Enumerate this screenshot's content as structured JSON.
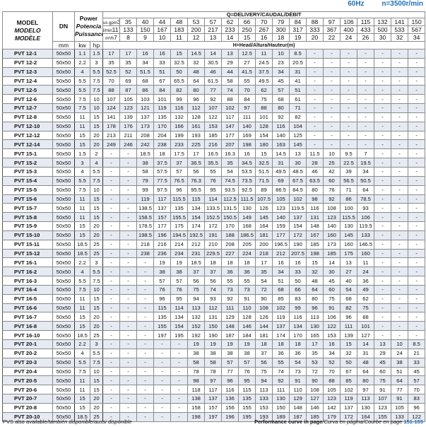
{
  "top": {
    "freq": "60Hz",
    "speed": "n=3500r/min"
  },
  "header": {
    "model": [
      "MODEL",
      "MODELO",
      "MODÈLE"
    ],
    "dn": "DN",
    "dn_unit": "mm",
    "power": [
      "Power",
      "Potencia",
      "Puissance"
    ],
    "kw": "kw",
    "hp": "hp",
    "delivery": "Q=DELIVERY/CAUDAL/DÉBIT",
    "head": "H=Head/Altura/Hauteur(m)",
    "unit_gpm": "us gpm",
    "unit_lmin": "l/min",
    "unit_m3h": "m³/h",
    "gpm": [
      "31",
      "35",
      "40",
      "44",
      "48",
      "53",
      "57",
      "62",
      "66",
      "70",
      "79",
      "84",
      "88",
      "97",
      "106",
      "115",
      "132",
      "141",
      "150"
    ],
    "lmin": [
      "117",
      "133",
      "150",
      "167",
      "183",
      "200",
      "217",
      "233",
      "250",
      "267",
      "300",
      "317",
      "333",
      "367",
      "400",
      "433",
      "500",
      "533",
      "567"
    ],
    "m3h": [
      "7",
      "8",
      "9",
      "10",
      "11",
      "12",
      "13",
      "14",
      "15",
      "16",
      "18",
      "19",
      "20",
      "22",
      "24",
      "26",
      "30",
      "32",
      "34"
    ]
  },
  "rows": [
    {
      "model": "PVT 12-1",
      "dn": "50x50",
      "kw": "1.1",
      "hp": "1.5",
      "h": [
        "17",
        "17",
        "16",
        "16",
        "15",
        "14.5",
        "14",
        "13",
        "12.5",
        "11",
        "10",
        "8.5",
        "-",
        "-",
        "-",
        "-",
        "-",
        "-",
        "-"
      ]
    },
    {
      "model": "PVT 12-2",
      "dn": "50x50",
      "kw": "2.2",
      "hp": "3",
      "h": [
        "35",
        "35",
        "34",
        "33",
        "32.5",
        "32",
        "30.5",
        "29",
        "27",
        "24.5",
        "23",
        "20.5",
        "-",
        "-",
        "-",
        "-",
        "-",
        "-",
        "-"
      ]
    },
    {
      "model": "PVT 12-3",
      "dn": "50x50",
      "kw": "4",
      "hp": "5.5",
      "h": [
        "52.5",
        "52",
        "51.5",
        "51",
        "50",
        "48",
        "46",
        "44",
        "41.5",
        "37.5",
        "34",
        "31",
        "-",
        "-",
        "-",
        "-",
        "-",
        "-",
        "-"
      ]
    },
    {
      "model": "PVT 12-4",
      "dn": "50x50",
      "kw": "5.5",
      "hp": "7.5",
      "h": [
        "70",
        "69",
        "68",
        "67",
        "65.5",
        "64",
        "61.5",
        "58",
        "55",
        "49.5",
        "45",
        "41",
        "-",
        "-",
        "-",
        "-",
        "-",
        "-",
        "-"
      ]
    },
    {
      "model": "PVT 12-5",
      "dn": "50x50",
      "kw": "5.5",
      "hp": "7.5",
      "h": [
        "88",
        "87",
        "86",
        "84",
        "82",
        "80",
        "77",
        "74",
        "70",
        "62",
        "57",
        "51",
        "-",
        "-",
        "-",
        "-",
        "-",
        "-",
        "-"
      ]
    },
    {
      "model": "PVT 12-6",
      "dn": "50x50",
      "kw": "7.5",
      "hp": "10",
      "h": [
        "107",
        "105",
        "103",
        "101",
        "99",
        "96",
        "92",
        "88",
        "84",
        "75",
        "68",
        "61",
        "-",
        "-",
        "-",
        "-",
        "-",
        "-",
        "-"
      ]
    },
    {
      "model": "PVT 12-7",
      "dn": "50x50",
      "kw": "7.5",
      "hp": "10",
      "h": [
        "124",
        "123",
        "121",
        "119",
        "116",
        "112",
        "107",
        "102",
        "97",
        "88",
        "80",
        "71",
        "-",
        "-",
        "-",
        "-",
        "-",
        "-",
        "-"
      ]
    },
    {
      "model": "PVT 12-8",
      "dn": "50x50",
      "kw": "11",
      "hp": "15",
      "h": [
        "141",
        "139",
        "137",
        "135",
        "132",
        "128",
        "122",
        "117",
        "111",
        "101",
        "92",
        "82",
        "-",
        "-",
        "-",
        "-",
        "-",
        "-",
        "-"
      ]
    },
    {
      "model": "PVT 12-10",
      "dn": "50x50",
      "kw": "11",
      "hp": "15",
      "h": [
        "178",
        "176",
        "173",
        "170",
        "166",
        "161",
        "153",
        "147",
        "140",
        "128",
        "116",
        "104",
        "-",
        "-",
        "-",
        "-",
        "-",
        "-",
        "-"
      ]
    },
    {
      "model": "PVT 12-12",
      "dn": "50x50",
      "kw": "15",
      "hp": "20",
      "h": [
        "213",
        "211",
        "208",
        "204",
        "199",
        "193",
        "185",
        "177",
        "169",
        "154",
        "140",
        "125",
        "-",
        "-",
        "-",
        "-",
        "-",
        "-",
        "-"
      ]
    },
    {
      "model": "PVT 12-14",
      "dn": "50x50",
      "kw": "15",
      "hp": "20",
      "h": [
        "249",
        "246",
        "242",
        "238",
        "233",
        "225",
        "216",
        "207",
        "198",
        "180",
        "163",
        "145",
        "-",
        "-",
        "-",
        "-",
        "-",
        "-",
        "-"
      ]
    },
    {
      "model": "PVT 15-1",
      "dn": "50x50",
      "kw": "1.5",
      "hp": "2",
      "h": [
        "-",
        "-",
        "18.5",
        "18",
        "17.5",
        "17",
        "16.5",
        "16.3",
        "16",
        "15",
        "14.5",
        "13",
        "11.5",
        "10",
        "9.5",
        "7",
        "-",
        "-",
        "-"
      ]
    },
    {
      "model": "PVT 15-2",
      "dn": "50x50",
      "kw": "3",
      "hp": "4",
      "h": [
        "-",
        "-",
        "38",
        "37.5",
        "37",
        "36.5",
        "35.5",
        "35",
        "34.5",
        "32.5",
        "31",
        "30",
        "28",
        "25",
        "22.5",
        "19.5",
        "-",
        "-",
        "-"
      ]
    },
    {
      "model": "PVT 15-3",
      "dn": "50x50",
      "kw": "4",
      "hp": "5.5",
      "h": [
        "-",
        "-",
        "58",
        "57.5",
        "57",
        "56",
        "55",
        "54",
        "53.5",
        "51.5",
        "49.5",
        "48.5",
        "46",
        "42",
        "39",
        "34",
        "-",
        "-",
        "-"
      ]
    },
    {
      "model": "PVT 15-4",
      "dn": "50x50",
      "kw": "5.5",
      "hp": "7.5",
      "h": [
        "-",
        "-",
        "79",
        "77.5",
        "76.5",
        "76.3",
        "76",
        "74.5",
        "73.5",
        "71.5",
        "69",
        "67.5",
        "63.5",
        "60",
        "56.5",
        "50.5",
        "-",
        "-",
        "-"
      ]
    },
    {
      "model": "PVT 15-5",
      "dn": "50x50",
      "kw": "7.5",
      "hp": "10",
      "h": [
        "-",
        "-",
        "99",
        "97.5",
        "96",
        "95.5",
        "95",
        "93.5",
        "92.5",
        "89",
        "86.5",
        "84.5",
        "80",
        "76",
        "71",
        "64",
        "-",
        "-",
        "-"
      ]
    },
    {
      "model": "PVT 15-6",
      "dn": "50x50",
      "kw": "11",
      "hp": "15",
      "h": [
        "-",
        "-",
        "119",
        "117",
        "115.5",
        "115",
        "114",
        "112.5",
        "111.5",
        "107.5",
        "105",
        "102",
        "98",
        "92",
        "86",
        "78.5",
        "-",
        "-",
        "-"
      ]
    },
    {
      "model": "PVT 15-7",
      "dn": "50x50",
      "kw": "11",
      "hp": "15",
      "h": [
        "-",
        "-",
        "138.5",
        "137",
        "135",
        "134",
        "133.5",
        "131.5",
        "130",
        "126",
        "123",
        "119.5",
        "116",
        "108",
        "100",
        "93",
        "-",
        "-",
        "-"
      ]
    },
    {
      "model": "PVT 15-8",
      "dn": "50x50",
      "kw": "11",
      "hp": "15",
      "h": [
        "-",
        "-",
        "158.5",
        "157",
        "155.5",
        "154",
        "152.5",
        "150.5",
        "149",
        "145",
        "140",
        "137",
        "131",
        "123",
        "115.5",
        "106",
        "-",
        "-",
        "-"
      ]
    },
    {
      "model": "PVT 15-9",
      "dn": "50x50",
      "kw": "15",
      "hp": "20",
      "h": [
        "-",
        "-",
        "178.5",
        "177",
        "175",
        "174",
        "172",
        "170",
        "168",
        "164",
        "159",
        "154",
        "148",
        "140",
        "130",
        "119.5",
        "-",
        "-",
        "-"
      ]
    },
    {
      "model": "PVT 15-10",
      "dn": "50x50",
      "kw": "15",
      "hp": "20",
      "h": [
        "-",
        "-",
        "198.5",
        "196",
        "194.5",
        "192.5",
        "191",
        "188",
        "186.5",
        "181",
        "177",
        "172",
        "167",
        "160",
        "145",
        "133",
        "-",
        "-",
        "-"
      ]
    },
    {
      "model": "PVT 15-11",
      "dn": "50x50",
      "kw": "18.5",
      "hp": "25",
      "h": [
        "-",
        "-",
        "218",
        "216",
        "214",
        "212",
        "210",
        "208",
        "205",
        "200",
        "196.5",
        "190",
        "185",
        "173",
        "160",
        "146.5",
        "-",
        "-",
        "-"
      ]
    },
    {
      "model": "PVT 15-12",
      "dn": "50x50",
      "kw": "18.5",
      "hp": "25",
      "h": [
        "-",
        "-",
        "238",
        "236",
        "234",
        "231",
        "229.5",
        "227",
        "224",
        "218",
        "212",
        "207.5",
        "198",
        "185",
        "175",
        "160",
        "-",
        "-",
        "-"
      ]
    },
    {
      "model": "PVT 16-1",
      "dn": "50x50",
      "kw": "2.2",
      "hp": "3",
      "h": [
        "-",
        "-",
        "-",
        "19",
        "19",
        "18.5",
        "18",
        "18",
        "18",
        "17",
        "16",
        "16",
        "15",
        "14",
        "13",
        "11",
        "-",
        "-",
        "-"
      ]
    },
    {
      "model": "PVT 16-2",
      "dn": "50x50",
      "kw": "4",
      "hp": "5.5",
      "h": [
        "-",
        "-",
        "-",
        "38",
        "38",
        "37",
        "37",
        "36",
        "36",
        "35",
        "34",
        "33",
        "32",
        "30",
        "27",
        "24",
        "-",
        "-",
        "-"
      ]
    },
    {
      "model": "PVT 16-3",
      "dn": "50x50",
      "kw": "5.5",
      "hp": "7.5",
      "h": [
        "-",
        "-",
        "-",
        "57",
        "57",
        "56",
        "56",
        "55",
        "55",
        "54",
        "51",
        "50",
        "48",
        "45",
        "40",
        "36",
        "-",
        "-",
        "-"
      ]
    },
    {
      "model": "PVT 16-4",
      "dn": "50x50",
      "kw": "7.5",
      "hp": "10",
      "h": [
        "-",
        "-",
        "-",
        "76",
        "76",
        "75",
        "74",
        "73",
        "73",
        "72",
        "68",
        "66",
        "64",
        "60",
        "54",
        "49",
        "-",
        "-",
        "-"
      ]
    },
    {
      "model": "PVT 16-5",
      "dn": "50x50",
      "kw": "11",
      "hp": "15",
      "h": [
        "-",
        "-",
        "-",
        "96",
        "95",
        "94",
        "93",
        "92",
        "91",
        "90",
        "85",
        "83",
        "80",
        "75",
        "68",
        "62",
        "-",
        "-",
        "-"
      ]
    },
    {
      "model": "PVT 16-6",
      "dn": "50x50",
      "kw": "11",
      "hp": "15",
      "h": [
        "-",
        "-",
        "-",
        "115",
        "114",
        "113",
        "112",
        "111",
        "110",
        "108",
        "102",
        "99",
        "96",
        "91",
        "82",
        "75",
        "-",
        "-",
        "-"
      ]
    },
    {
      "model": "PVT 16-7",
      "dn": "50x50",
      "kw": "15",
      "hp": "20",
      "h": [
        "-",
        "-",
        "-",
        "135",
        "134",
        "132",
        "131",
        "129",
        "128",
        "126",
        "119",
        "116",
        "113",
        "106",
        "96",
        "88",
        "-",
        "-",
        "-"
      ]
    },
    {
      "model": "PVT 16-8",
      "dn": "50x50",
      "kw": "15",
      "hp": "20",
      "h": [
        "-",
        "-",
        "-",
        "155",
        "154",
        "152",
        "150",
        "148",
        "146",
        "144",
        "137",
        "134",
        "130",
        "122",
        "111",
        "101",
        "-",
        "-",
        "-"
      ]
    },
    {
      "model": "PVT 16-10",
      "dn": "50x50",
      "kw": "18.5",
      "hp": "25",
      "h": [
        "-",
        "-",
        "-",
        "197",
        "195",
        "192",
        "190",
        "187",
        "184",
        "181",
        "174",
        "170",
        "165",
        "153",
        "139",
        "127",
        "-",
        "-",
        "-"
      ]
    },
    {
      "model": "PVT 20-1",
      "dn": "50x50",
      "kw": "2.2",
      "hp": "3",
      "h": [
        "-",
        "-",
        "-",
        "-",
        "-",
        "19",
        "19",
        "19",
        "19",
        "18",
        "18",
        "18",
        "17",
        "16",
        "15",
        "14",
        "13",
        "10",
        "8.5"
      ]
    },
    {
      "model": "PVT 20-2",
      "dn": "50x50",
      "kw": "4",
      "hp": "5.5",
      "h": [
        "-",
        "-",
        "-",
        "-",
        "-",
        "38",
        "38",
        "38",
        "38",
        "37",
        "36",
        "36",
        "35",
        "34",
        "32",
        "31",
        "29",
        "24",
        "21"
      ]
    },
    {
      "model": "PVT 20-3",
      "dn": "50x50",
      "kw": "5.5",
      "hp": "7.5",
      "h": [
        "-",
        "-",
        "-",
        "-",
        "-",
        "58",
        "58",
        "57",
        "57",
        "56",
        "55",
        "54",
        "53",
        "52",
        "50",
        "48",
        "45",
        "38",
        "33"
      ]
    },
    {
      "model": "PVT 20-4",
      "dn": "50x50",
      "kw": "7.5",
      "hp": "10",
      "h": [
        "-",
        "-",
        "-",
        "-",
        "-",
        "78",
        "78",
        "77",
        "76",
        "75",
        "74",
        "73",
        "72",
        "70",
        "67",
        "64",
        "60",
        "51",
        "45"
      ]
    },
    {
      "model": "PVT 20-5",
      "dn": "50x50",
      "kw": "11",
      "hp": "15",
      "h": [
        "-",
        "-",
        "-",
        "-",
        "-",
        "98",
        "97",
        "96",
        "95",
        "94",
        "92",
        "91",
        "90",
        "88",
        "85",
        "80",
        "75",
        "64",
        "57"
      ]
    },
    {
      "model": "PVT 20-6",
      "dn": "50x50",
      "kw": "11",
      "hp": "15",
      "h": [
        "-",
        "-",
        "-",
        "-",
        "-",
        "118",
        "117",
        "116",
        "115",
        "113",
        "111",
        "110",
        "108",
        "105",
        "102",
        "97",
        "91",
        "77",
        "70"
      ]
    },
    {
      "model": "PVT 20-7",
      "dn": "50x50",
      "kw": "15",
      "hp": "20",
      "h": [
        "-",
        "-",
        "-",
        "-",
        "-",
        "138",
        "137",
        "136",
        "135",
        "133",
        "130",
        "129",
        "127",
        "123",
        "119",
        "113",
        "107",
        "91",
        "83"
      ]
    },
    {
      "model": "PVT 20-8",
      "dn": "50x50",
      "kw": "15",
      "hp": "20",
      "h": [
        "-",
        "-",
        "-",
        "-",
        "-",
        "158",
        "157",
        "156",
        "155",
        "153",
        "150",
        "148",
        "146",
        "142",
        "137",
        "130",
        "123",
        "105",
        "96"
      ]
    },
    {
      "model": "PVT 20-10",
      "dn": "50x50",
      "kw": "18.5",
      "hp": "25",
      "h": [
        "-",
        "-",
        "-",
        "-",
        "-",
        "198",
        "197",
        "196",
        "195",
        "193",
        "189",
        "187",
        "185",
        "179",
        "172",
        "164",
        "155",
        "133",
        "122"
      ]
    }
  ],
  "footer": {
    "left_bold": "PVS also available",
    "left_italic": "/también disponible/aussi disponible",
    "right_bold": "Performance curve in page",
    "right_italic": "/Curva en página/Courbe en page",
    "page_ref": "151-155"
  },
  "colors": {
    "accent": "#1f6fb5",
    "stripe": "#e6eaf2"
  }
}
